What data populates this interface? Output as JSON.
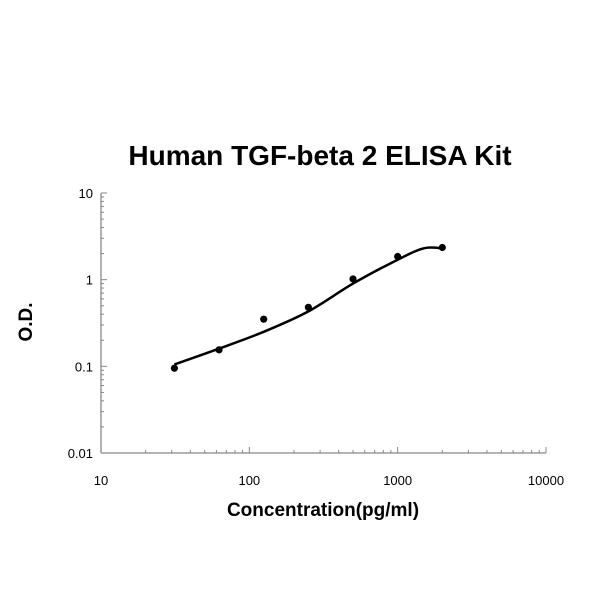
{
  "chart_data": {
    "type": "scatter",
    "title": "Human TGF-beta 2 ELISA Kit",
    "xlabel": "Concentration(pg/ml)",
    "ylabel": "O.D.",
    "xscale": "log",
    "yscale": "log",
    "xlim": [
      10,
      10000
    ],
    "ylim": [
      0.01,
      10
    ],
    "x_ticks": [
      {
        "value": 10,
        "label": "10"
      },
      {
        "value": 100,
        "label": "100"
      },
      {
        "value": 1000,
        "label": "1000"
      },
      {
        "value": 10000,
        "label": "10000"
      }
    ],
    "y_ticks": [
      {
        "value": 10,
        "label": "10"
      },
      {
        "value": 1,
        "label": "1"
      },
      {
        "value": 0.1,
        "label": "0.1"
      },
      {
        "value": 0.01,
        "label": "0.01"
      }
    ],
    "grid": false,
    "legend": "none",
    "series": [
      {
        "x": [
          31.25,
          62.5,
          125,
          250,
          500,
          1000,
          2000
        ],
        "y": [
          0.095,
          0.155,
          0.35,
          0.48,
          1.02,
          1.85,
          2.35
        ],
        "marker": "circle",
        "color": "#000000",
        "trendline": {
          "x": [
            31.25,
            62.5,
            125,
            250,
            500,
            1000,
            1500,
            2000
          ],
          "y": [
            0.105,
            0.16,
            0.25,
            0.43,
            0.9,
            1.7,
            2.3,
            2.3
          ],
          "color": "#000000"
        }
      }
    ]
  }
}
